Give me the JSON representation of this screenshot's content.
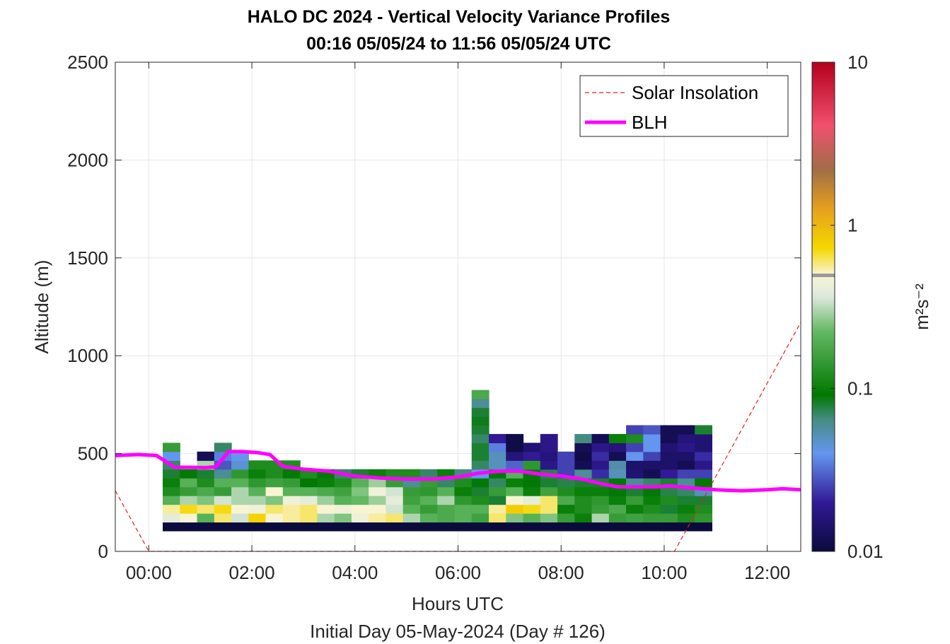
{
  "header": {
    "title": "HALO DC 2024 - Vertical Velocity Variance Profiles",
    "subtitle": "00:16 05/05/24 to 11:56 05/05/24  UTC"
  },
  "chart_data": {
    "type": "heatmap",
    "title": "HALO DC 2024 - Vertical Velocity Variance Profiles",
    "subtitle": "00:16 05/05/24 to 11:56 05/05/24  UTC",
    "xlabel": "Hours UTC",
    "xlabel2": "Initial Day 05-May-2024 (Day # 126)",
    "ylabel": "Altitude (m)",
    "xlim": [
      -0.65,
      12.65
    ],
    "ylim": [
      0,
      2500
    ],
    "x_ticks": [
      0,
      2,
      4,
      6,
      8,
      10,
      12
    ],
    "x_tick_labels": [
      "00:00",
      "02:00",
      "04:00",
      "06:00",
      "08:00",
      "10:00",
      "12:00"
    ],
    "y_ticks": [
      0,
      500,
      1000,
      1500,
      2000,
      2500
    ],
    "y_tick_labels": [
      "0",
      "500",
      "1000",
      "1500",
      "2000",
      "2500"
    ],
    "grid": true,
    "colorbar": {
      "scale": "log",
      "range": [
        0.01,
        10
      ],
      "ticks": [
        0.01,
        0.1,
        1,
        10
      ],
      "tick_labels": [
        "0.01",
        "0.1",
        "1",
        "10"
      ],
      "label": "m²s⁻²"
    },
    "legend": {
      "position": "top-right",
      "entries": [
        {
          "label": "Solar Insolation",
          "style": "dashed",
          "color": "#e8201a"
        },
        {
          "label": "BLH",
          "style": "solid",
          "color": "#ff00ff"
        }
      ]
    },
    "heatmap": {
      "bin_width_hours": 0.333,
      "x_start": 0.27,
      "altitude_bin_m": 45,
      "altitude_start_m": 105,
      "columns": [
        [
          0.01,
          0.4,
          0.55,
          0.2,
          0.12,
          0.1,
          0.08,
          0.07,
          0.04,
          0.15
        ],
        [
          0.01,
          0.5,
          0.7,
          0.3,
          0.15,
          0.2,
          0.09
        ],
        [
          0.01,
          0.2,
          0.6,
          0.25,
          0.18,
          0.12,
          0.08,
          0.3,
          0.012
        ],
        [
          0.01,
          0.6,
          0.7,
          0.35,
          0.15,
          0.2,
          0.06,
          0.028,
          0.035,
          0.07
        ],
        [
          0.01,
          0.35,
          0.5,
          0.3,
          0.3,
          0.2,
          0.14,
          0.045,
          0.04
        ],
        [
          0.01,
          0.75,
          0.45,
          0.3,
          0.2,
          0.14,
          0.1,
          0.12
        ],
        [
          0.01,
          0.5,
          0.6,
          0.25,
          0.5,
          0.16,
          0.12,
          0.12
        ],
        [
          0.01,
          0.55,
          0.55,
          0.45,
          0.2,
          0.15,
          0.09,
          0.12
        ],
        [
          0.01,
          0.6,
          0.6,
          0.4,
          0.2,
          0.09,
          0.12
        ],
        [
          0.01,
          0.3,
          0.5,
          0.28,
          0.18,
          0.1,
          0.09
        ],
        [
          0.01,
          0.25,
          0.45,
          0.2,
          0.16,
          0.12,
          0.07
        ],
        [
          0.01,
          0.45,
          0.5,
          0.22,
          0.25,
          0.2,
          0.08
        ],
        [
          0.01,
          0.55,
          0.5,
          0.28,
          0.45,
          0.28,
          0.1
        ],
        [
          0.01,
          0.6,
          0.35,
          0.4,
          0.35,
          0.15,
          0.12
        ],
        [
          0.01,
          0.3,
          0.2,
          0.16,
          0.15,
          0.06,
          0.12
        ],
        [
          0.01,
          0.2,
          0.15,
          0.2,
          0.14,
          0.15,
          0.07
        ],
        [
          0.01,
          0.18,
          0.18,
          0.3,
          0.2,
          0.07,
          0.1
        ],
        [
          0.01,
          0.2,
          0.2,
          0.14,
          0.1,
          0.12,
          0.065
        ],
        [
          0.01,
          0.16,
          0.2,
          0.12,
          0.08,
          0.09,
          0.04,
          0.07,
          0.08,
          0.08,
          0.07,
          0.08,
          0.085,
          0.08,
          0.06,
          0.18
        ],
        [
          0.01,
          0.6,
          0.55,
          0.08,
          0.15,
          0.07,
          0.09,
          0.05,
          0.05,
          0.035,
          0.02
        ],
        [
          0.01,
          0.25,
          0.8,
          0.5,
          0.2,
          0.1,
          0.2,
          0.03,
          0.016,
          0.011,
          0.011
        ],
        [
          0.01,
          0.2,
          0.7,
          0.4,
          0.1,
          0.09,
          0.09,
          0.14,
          0.02,
          0.015
        ],
        [
          0.01,
          0.25,
          0.6,
          0.6,
          0.16,
          0.08,
          0.075,
          0.018,
          0.016,
          0.018,
          0.018
        ],
        [
          0.01,
          0.15,
          0.1,
          0.18,
          0.12,
          0.075,
          0.025,
          0.025,
          0.025
        ],
        [
          0.01,
          0.1,
          0.12,
          0.12,
          0.1,
          0.08,
          0.06,
          0.012,
          0.011,
          0.012,
          0.065
        ],
        [
          0.01,
          0.3,
          0.15,
          0.14,
          0.1,
          0.08,
          0.022,
          0.018,
          0.022,
          0.018,
          0.012
        ],
        [
          0.01,
          0.15,
          0.18,
          0.1,
          0.09,
          0.09,
          0.05,
          0.055,
          0.012,
          0.016,
          0.1
        ],
        [
          0.01,
          0.16,
          0.1,
          0.15,
          0.08,
          0.06,
          0.015,
          0.014,
          0.04,
          0.025,
          0.12,
          0.025
        ],
        [
          0.01,
          0.15,
          0.12,
          0.1,
          0.09,
          0.07,
          0.012,
          0.014,
          0.025,
          0.04,
          0.04,
          0.028
        ],
        [
          0.01,
          0.15,
          0.08,
          0.12,
          0.075,
          0.08,
          0.02,
          0.014,
          0.014,
          0.015,
          0.012,
          0.012
        ],
        [
          0.01,
          0.12,
          0.1,
          0.08,
          0.07,
          0.06,
          0.025,
          0.012,
          0.014,
          0.018,
          0.016,
          0.012
        ],
        [
          0.01,
          0.14,
          0.12,
          0.08,
          0.05,
          0.09,
          0.025,
          0.018,
          0.022,
          0.015,
          0.015,
          0.08
        ]
      ]
    },
    "series": [
      {
        "name": "BLH",
        "x": [
          -0.65,
          -0.2,
          0.15,
          0.5,
          0.8,
          1.1,
          1.3,
          1.55,
          1.8,
          2.1,
          2.35,
          2.6,
          3.0,
          3.5,
          4.0,
          4.5,
          5.0,
          5.5,
          6.0,
          6.4,
          6.8,
          7.2,
          7.6,
          8.0,
          8.4,
          8.8,
          9.1,
          9.5,
          9.8,
          10.1,
          10.5,
          11.0,
          11.5,
          12.0,
          12.3,
          12.65
        ],
        "y": [
          490,
          495,
          490,
          430,
          430,
          428,
          432,
          510,
          510,
          505,
          495,
          435,
          420,
          410,
          385,
          375,
          370,
          370,
          380,
          400,
          410,
          410,
          395,
          385,
          370,
          345,
          330,
          330,
          330,
          335,
          325,
          315,
          310,
          315,
          320,
          315
        ]
      },
      {
        "name": "Solar Insolation",
        "x": [
          -0.65,
          0.0,
          10.2,
          12.65
        ],
        "y": [
          310,
          0,
          0,
          1170
        ]
      }
    ]
  }
}
